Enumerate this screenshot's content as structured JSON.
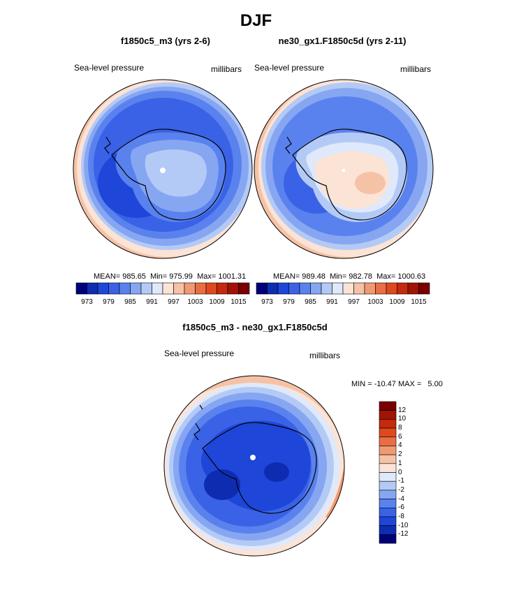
{
  "page_title": "DJF",
  "panels": [
    {
      "title": "f1850c5_m3 (yrs 2-6)",
      "variable": "Sea-level pressure",
      "units": "millibars",
      "stats": {
        "mean_label": "MEAN=",
        "mean": "985.65",
        "min_label": "Min=",
        "min": "975.99",
        "max_label": "Max=",
        "max": "1001.31"
      }
    },
    {
      "title": "ne30_gx1.F1850c5d (yrs 2-11)",
      "variable": "Sea-level pressure",
      "units": "millibars",
      "stats": {
        "mean_label": "MEAN=",
        "mean": "989.48",
        "min_label": "Min=",
        "min": "982.78",
        "max_label": "Max=",
        "max": "1000.63"
      }
    },
    {
      "title": "f1850c5_m3 - ne30_gx1.F1850c5d",
      "variable": "Sea-level pressure",
      "units": "millibars",
      "stats": {
        "minmax": "MIN = -10.47 MAX =   5.00"
      }
    }
  ],
  "horizontal_colorbar": {
    "tick_labels": [
      "973",
      "979",
      "985",
      "991",
      "997",
      "1003",
      "1009",
      "1015"
    ],
    "colors": [
      "#00007a",
      "#0d2cb0",
      "#1e46d8",
      "#3a62e6",
      "#5a82ee",
      "#86a6f2",
      "#b4caf6",
      "#dfe9fb",
      "#fbe3d6",
      "#f6c2a6",
      "#f09a74",
      "#ea6e44",
      "#e04820",
      "#c42a0c",
      "#a01406",
      "#7a0000"
    ]
  },
  "vertical_colorbar": {
    "tick_labels": [
      "12",
      "10",
      "8",
      "6",
      "4",
      "2",
      "1",
      "0",
      "-1",
      "-2",
      "-4",
      "-6",
      "-8",
      "-10",
      "-12"
    ],
    "colors": [
      "#7a0000",
      "#a01406",
      "#c42a0c",
      "#e04820",
      "#ea6e44",
      "#f09a74",
      "#f6c2a6",
      "#fbe3d6",
      "#dfe9fb",
      "#b4caf6",
      "#86a6f2",
      "#5a82ee",
      "#3a62e6",
      "#1e46d8",
      "#0d2cb0",
      "#00007a"
    ]
  }
}
